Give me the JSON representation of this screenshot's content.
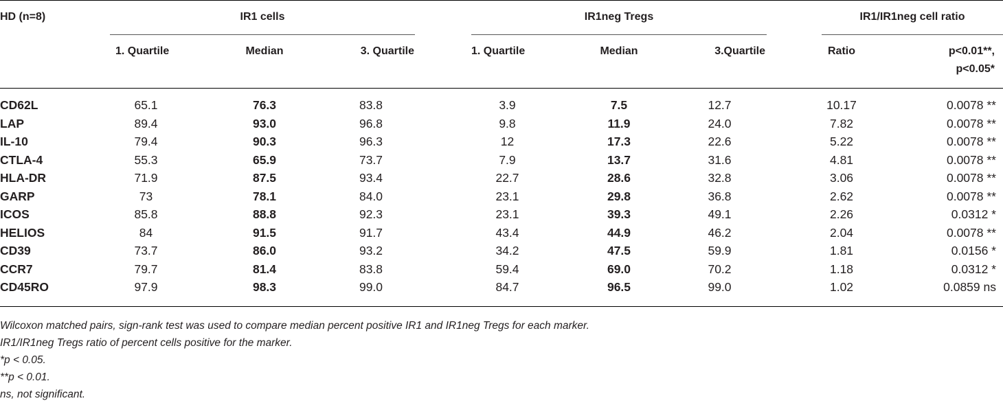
{
  "table": {
    "corner_label": "HD (n=8)",
    "groups": [
      {
        "label": "IR1 cells"
      },
      {
        "label": "IR1neg Tregs"
      },
      {
        "label": "IR1/IR1neg cell ratio"
      }
    ],
    "columns": [
      "1. Quartile",
      "Median",
      "3. Quartile",
      "1. Quartile",
      "Median",
      "3.Quartile",
      "Ratio",
      "p<0.01**,",
      "p<0.05*"
    ],
    "rows": [
      {
        "marker": "CD62L",
        "ir1_q1": "65.1",
        "ir1_med": "76.3",
        "ir1_q3": "83.8",
        "neg_q1": "3.9",
        "neg_med": "7.5",
        "neg_q3": "12.7",
        "ratio": "10.17",
        "p": "0.0078 **"
      },
      {
        "marker": "LAP",
        "ir1_q1": "89.4",
        "ir1_med": "93.0",
        "ir1_q3": "96.8",
        "neg_q1": "9.8",
        "neg_med": "11.9",
        "neg_q3": "24.0",
        "ratio": "7.82",
        "p": "0.0078 **"
      },
      {
        "marker": "IL-10",
        "ir1_q1": "79.4",
        "ir1_med": "90.3",
        "ir1_q3": "96.3",
        "neg_q1": "12",
        "neg_med": "17.3",
        "neg_q3": "22.6",
        "ratio": "5.22",
        "p": "0.0078 **"
      },
      {
        "marker": "CTLA-4",
        "ir1_q1": "55.3",
        "ir1_med": "65.9",
        "ir1_q3": "73.7",
        "neg_q1": "7.9",
        "neg_med": "13.7",
        "neg_q3": "31.6",
        "ratio": "4.81",
        "p": "0.0078 **"
      },
      {
        "marker": "HLA-DR",
        "ir1_q1": "71.9",
        "ir1_med": "87.5",
        "ir1_q3": "93.4",
        "neg_q1": "22.7",
        "neg_med": "28.6",
        "neg_q3": "32.8",
        "ratio": "3.06",
        "p": "0.0078 **"
      },
      {
        "marker": "GARP",
        "ir1_q1": "73",
        "ir1_med": "78.1",
        "ir1_q3": "84.0",
        "neg_q1": "23.1",
        "neg_med": "29.8",
        "neg_q3": "36.8",
        "ratio": "2.62",
        "p": "0.0078 **"
      },
      {
        "marker": "ICOS",
        "ir1_q1": "85.8",
        "ir1_med": "88.8",
        "ir1_q3": "92.3",
        "neg_q1": "23.1",
        "neg_med": "39.3",
        "neg_q3": "49.1",
        "ratio": "2.26",
        "p": "0.0312 *"
      },
      {
        "marker": "HELIOS",
        "ir1_q1": "84",
        "ir1_med": "91.5",
        "ir1_q3": "91.7",
        "neg_q1": "43.4",
        "neg_med": "44.9",
        "neg_q3": "46.2",
        "ratio": "2.04",
        "p": "0.0078 **"
      },
      {
        "marker": "CD39",
        "ir1_q1": "73.7",
        "ir1_med": "86.0",
        "ir1_q3": "93.2",
        "neg_q1": "34.2",
        "neg_med": "47.5",
        "neg_q3": "59.9",
        "ratio": "1.81",
        "p": "0.0156 *"
      },
      {
        "marker": "CCR7",
        "ir1_q1": "79.7",
        "ir1_med": "81.4",
        "ir1_q3": "83.8",
        "neg_q1": "59.4",
        "neg_med": "69.0",
        "neg_q3": "70.2",
        "ratio": "1.18",
        "p": "0.0312 *"
      },
      {
        "marker": "CD45RO",
        "ir1_q1": "97.9",
        "ir1_med": "98.3",
        "ir1_q3": "99.0",
        "neg_q1": "84.7",
        "neg_med": "96.5",
        "neg_q3": "99.0",
        "ratio": "1.02",
        "p": "0.0859 ns"
      }
    ]
  },
  "footnotes": [
    "Wilcoxon matched pairs, sign-rank test was used to compare median percent positive IR1 and IR1neg Tregs for each marker.",
    "IR1/IR1neg Tregs ratio of percent cells positive for the marker.",
    "*p < 0.05.",
    "**p < 0.01.",
    "ns, not significant."
  ]
}
